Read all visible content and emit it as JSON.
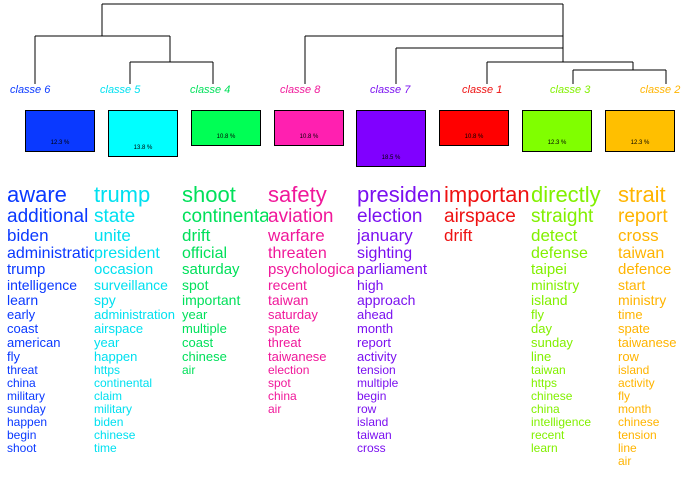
{
  "classes": [
    {
      "key": "c6",
      "label": "classe  6",
      "pct": "12.3 %",
      "color": "#0a39ff",
      "words": [
        "aware",
        "additional",
        "biden",
        "administration",
        "trump",
        "intelligence",
        "learn",
        "early",
        "coast",
        "american",
        "fly",
        "threat",
        "china",
        "military",
        "sunday",
        "happen",
        "begin",
        "shoot"
      ]
    },
    {
      "key": "c5",
      "label": "classe  5",
      "pct": "13.8 %",
      "color": "#00e0f0",
      "words": [
        "trump",
        "state",
        "unite",
        "president",
        "occasion",
        "surveillance",
        "spy",
        "administration",
        "airspace",
        "year",
        "happen",
        "https",
        "continental",
        "claim",
        "military",
        "biden",
        "chinese",
        "time"
      ]
    },
    {
      "key": "c4",
      "label": "classe  4",
      "pct": "10.8 %",
      "color": "#00e05a",
      "words": [
        "shoot",
        "continental",
        "drift",
        "official",
        "saturday",
        "spot",
        "important",
        "year",
        "multiple",
        "coast",
        "chinese",
        "air"
      ]
    },
    {
      "key": "c8",
      "label": "classe  8",
      "pct": "10.8 %",
      "color": "#f0189a",
      "words": [
        "safety",
        "aviation",
        "warfare",
        "threaten",
        "psychological",
        "recent",
        "taiwan",
        "saturday",
        "spate",
        "threat",
        "taiwanese",
        "election",
        "spot",
        "china",
        "air"
      ]
    },
    {
      "key": "c7",
      "label": "classe  7",
      "pct": "18.5 %",
      "color": "#7a10f0",
      "words": [
        "president",
        "election",
        "january",
        "sighting",
        "parliament",
        "high",
        "approach",
        "ahead",
        "month",
        "report",
        "activity",
        "tension",
        "multiple",
        "begin",
        "row",
        "island",
        "taiwan",
        "cross"
      ]
    },
    {
      "key": "c1",
      "label": "classe  1",
      "pct": "10.8 %",
      "color": "#ee1111",
      "words": [
        "important",
        "airspace",
        "drift"
      ]
    },
    {
      "key": "c3",
      "label": "classe  3",
      "pct": "12.3 %",
      "color": "#82f000",
      "words": [
        "directly",
        "straight",
        "detect",
        "defense",
        "taipei",
        "ministry",
        "island",
        "fly",
        "day",
        "sunday",
        "line",
        "taiwan",
        "https",
        "chinese",
        "china",
        "intelligence",
        "recent",
        "learn"
      ]
    },
    {
      "key": "c2",
      "label": "classe  2",
      "pct": "12.3 %",
      "color": "#ffb400",
      "words": [
        "strait",
        "report",
        "cross",
        "taiwan",
        "defence",
        "start",
        "ministry",
        "time",
        "spate",
        "taiwanese",
        "row",
        "island",
        "activity",
        "fly",
        "month",
        "chinese",
        "tension",
        "line",
        "air"
      ]
    }
  ]
}
